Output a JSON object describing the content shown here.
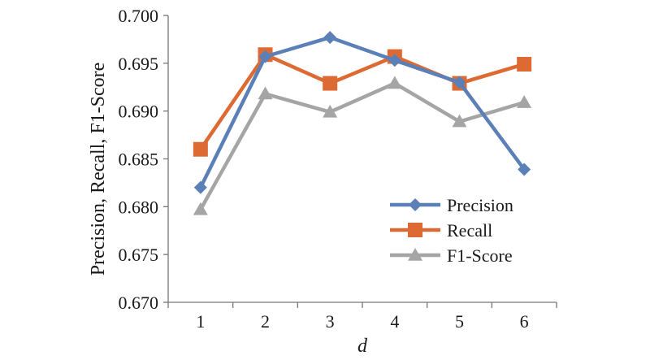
{
  "chart_data": {
    "type": "line",
    "title": "",
    "xlabel": "d",
    "ylabel": "Precision, Recall, F1-Score",
    "x": [
      1,
      2,
      3,
      4,
      5,
      6
    ],
    "x_ticks": [
      "1",
      "2",
      "3",
      "4",
      "5",
      "6"
    ],
    "ylim": [
      0.67,
      0.7
    ],
    "y_ticks": [
      "0.670",
      "0.675",
      "0.680",
      "0.685",
      "0.690",
      "0.695",
      "0.700"
    ],
    "grid": false,
    "legend_position": "bottom-right",
    "series": [
      {
        "name": "Precision",
        "marker": "diamond",
        "color": "#5b80b7",
        "values": [
          0.682,
          0.6957,
          0.6977,
          0.6953,
          0.693,
          0.6839
        ]
      },
      {
        "name": "Recall",
        "marker": "square",
        "color": "#dd6a33",
        "values": [
          0.686,
          0.6959,
          0.6929,
          0.6957,
          0.6929,
          0.6949
        ]
      },
      {
        "name": "F1-Score",
        "marker": "triangle",
        "color": "#a5a5a5",
        "values": [
          0.6797,
          0.6918,
          0.6899,
          0.6929,
          0.6889,
          0.6909
        ]
      }
    ]
  }
}
